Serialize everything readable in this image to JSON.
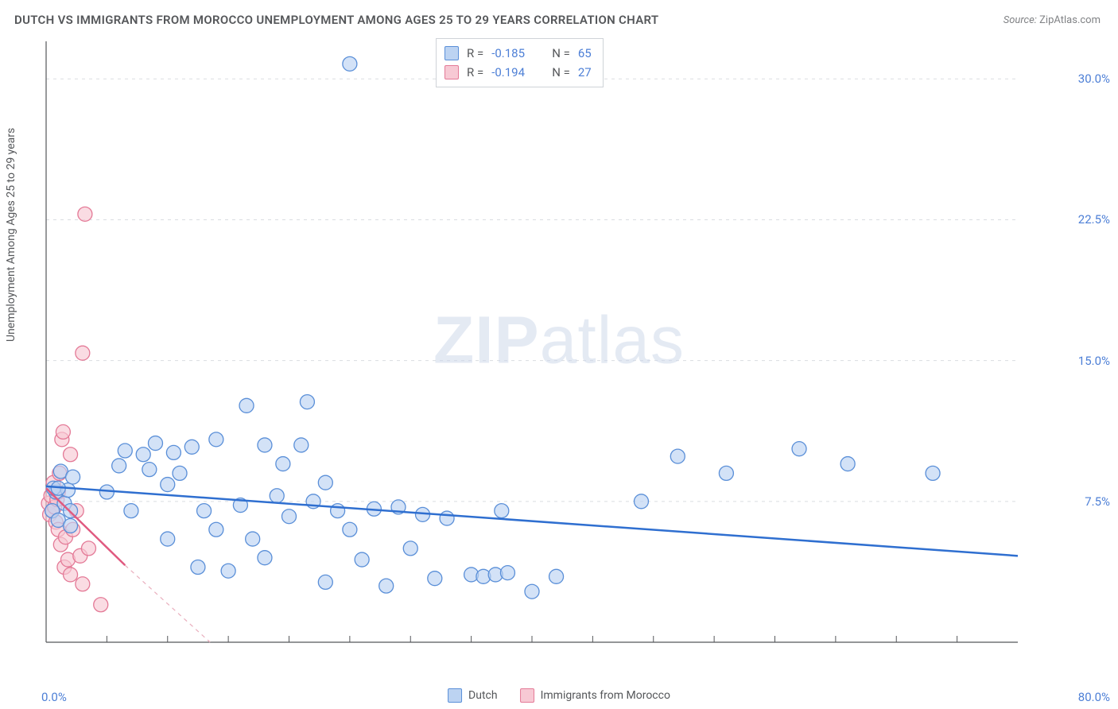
{
  "title": "DUTCH VS IMMIGRANTS FROM MOROCCO UNEMPLOYMENT AMONG AGES 25 TO 29 YEARS CORRELATION CHART",
  "source_label": "Source:",
  "source_value": "ZipAtlas.com",
  "y_axis_label": "Unemployment Among Ages 25 to 29 years",
  "watermark_bold": "ZIP",
  "watermark_light": "atlas",
  "chart": {
    "type": "scatter",
    "xlim": [
      0,
      80
    ],
    "ylim": [
      0,
      32
    ],
    "x_start_tick": "0.0%",
    "x_end_tick": "80.0%",
    "y_ticks": [
      {
        "v": 7.5,
        "label": "7.5%"
      },
      {
        "v": 15.0,
        "label": "15.0%"
      },
      {
        "v": 22.5,
        "label": "22.5%"
      },
      {
        "v": 30.0,
        "label": "30.0%"
      }
    ],
    "x_minor_ticks": [
      5,
      10,
      15,
      20,
      25,
      30,
      35,
      40,
      45,
      50,
      55,
      60,
      65,
      70,
      75
    ],
    "grid_color": "#dadde1",
    "axis_color": "#55575a",
    "background_color": "#ffffff",
    "bottom_legend": [
      {
        "label": "Dutch",
        "fill": "#bcd3f2",
        "stroke": "#5a8fd8"
      },
      {
        "label": "Immigrants from Morocco",
        "fill": "#f7c9d4",
        "stroke": "#e47a97"
      }
    ],
    "corr_legend": [
      {
        "swatch_fill": "#bcd3f2",
        "swatch_stroke": "#5a8fd8",
        "r_label": "R =",
        "r_val": "-0.185",
        "n_label": "N =",
        "n_val": "65"
      },
      {
        "swatch_fill": "#f7c9d4",
        "swatch_stroke": "#e47a97",
        "r_label": "R =",
        "r_val": "-0.194",
        "n_label": "N =",
        "n_val": "27"
      }
    ],
    "series": [
      {
        "name": "Dutch",
        "marker_fill": "#bcd3f2",
        "marker_stroke": "#5a8fd8",
        "marker_r": 9,
        "trend": {
          "x1": 0,
          "y1": 8.3,
          "x2": 80,
          "y2": 4.6,
          "color": "#2f6fd0",
          "width": 2.5
        },
        "extrap": null,
        "points": [
          [
            0.5,
            7.0
          ],
          [
            0.8,
            8.0
          ],
          [
            1.0,
            6.5
          ],
          [
            1.2,
            9.1
          ],
          [
            1.5,
            7.4
          ],
          [
            1.8,
            8.1
          ],
          [
            2.0,
            7.0
          ],
          [
            2.0,
            6.2
          ],
          [
            2.2,
            8.8
          ],
          [
            5.0,
            8.0
          ],
          [
            6.0,
            9.4
          ],
          [
            6.5,
            10.2
          ],
          [
            7.0,
            7.0
          ],
          [
            8.0,
            10.0
          ],
          [
            8.5,
            9.2
          ],
          [
            9.0,
            10.6
          ],
          [
            10.0,
            8.4
          ],
          [
            10.0,
            5.5
          ],
          [
            10.5,
            10.1
          ],
          [
            11.0,
            9.0
          ],
          [
            12.0,
            10.4
          ],
          [
            12.5,
            4.0
          ],
          [
            13.0,
            7.0
          ],
          [
            14.0,
            10.8
          ],
          [
            14.0,
            6.0
          ],
          [
            15.0,
            3.8
          ],
          [
            16.0,
            7.3
          ],
          [
            16.5,
            12.6
          ],
          [
            17.0,
            5.5
          ],
          [
            18.0,
            10.5
          ],
          [
            18.0,
            4.5
          ],
          [
            19.0,
            7.8
          ],
          [
            19.5,
            9.5
          ],
          [
            20.0,
            6.7
          ],
          [
            21.0,
            10.5
          ],
          [
            21.5,
            12.8
          ],
          [
            22.0,
            7.5
          ],
          [
            23.0,
            3.2
          ],
          [
            23.0,
            8.5
          ],
          [
            24.0,
            7.0
          ],
          [
            25.0,
            6.0
          ],
          [
            25.0,
            30.8
          ],
          [
            26.0,
            4.4
          ],
          [
            27.0,
            7.1
          ],
          [
            28.0,
            3.0
          ],
          [
            29.0,
            7.2
          ],
          [
            30.0,
            5.0
          ],
          [
            31.0,
            6.8
          ],
          [
            32.0,
            3.4
          ],
          [
            33.0,
            6.6
          ],
          [
            35.0,
            3.6
          ],
          [
            36.0,
            3.5
          ],
          [
            37.0,
            3.6
          ],
          [
            37.5,
            7.0
          ],
          [
            38.0,
            3.7
          ],
          [
            40.0,
            2.7
          ],
          [
            42.0,
            3.5
          ],
          [
            49.0,
            7.5
          ],
          [
            52.0,
            9.9
          ],
          [
            56.0,
            9.0
          ],
          [
            62.0,
            10.3
          ],
          [
            66.0,
            9.5
          ],
          [
            73.0,
            9.0
          ],
          [
            0.6,
            8.2
          ],
          [
            1.0,
            8.2
          ]
        ]
      },
      {
        "name": "Immigrants from Morocco",
        "marker_fill": "#f7c9d4",
        "marker_stroke": "#e47a97",
        "marker_r": 9,
        "trend": {
          "x1": 0,
          "y1": 8.2,
          "x2": 6.5,
          "y2": 4.1,
          "color": "#e05a80",
          "width": 2.5
        },
        "extrap": {
          "x1": 6.5,
          "y1": 4.1,
          "x2": 13.5,
          "y2": 0,
          "color": "#e9aebd",
          "width": 1.2,
          "dash": "5,5"
        },
        "points": [
          [
            0.2,
            7.4
          ],
          [
            0.3,
            6.8
          ],
          [
            0.4,
            7.8
          ],
          [
            0.5,
            7.0
          ],
          [
            0.6,
            8.5
          ],
          [
            0.7,
            7.2
          ],
          [
            0.8,
            6.4
          ],
          [
            0.9,
            7.6
          ],
          [
            1.0,
            8.0
          ],
          [
            1.0,
            6.0
          ],
          [
            1.1,
            9.0
          ],
          [
            1.2,
            5.2
          ],
          [
            1.3,
            10.8
          ],
          [
            1.4,
            11.2
          ],
          [
            1.5,
            4.0
          ],
          [
            1.6,
            5.6
          ],
          [
            1.8,
            4.4
          ],
          [
            2.0,
            10.0
          ],
          [
            2.0,
            3.6
          ],
          [
            2.2,
            6.0
          ],
          [
            2.5,
            7.0
          ],
          [
            2.8,
            4.6
          ],
          [
            3.0,
            15.4
          ],
          [
            3.0,
            3.1
          ],
          [
            3.2,
            22.8
          ],
          [
            3.5,
            5.0
          ],
          [
            4.5,
            2.0
          ]
        ]
      }
    ]
  }
}
